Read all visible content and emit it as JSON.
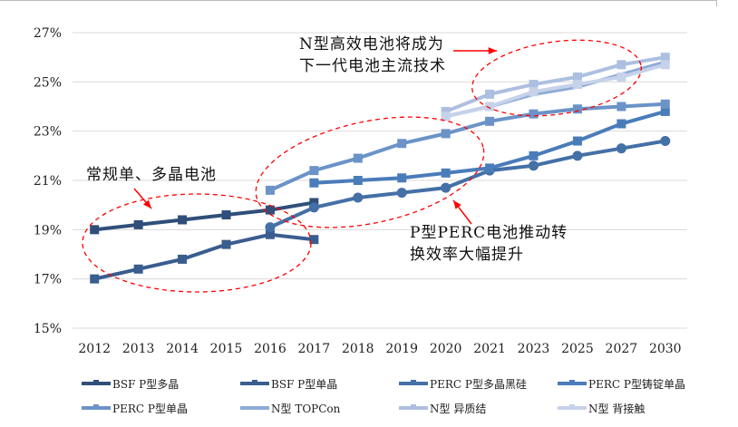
{
  "chart_data": {
    "type": "line",
    "title": "",
    "xlabel": "",
    "ylabel": "",
    "categories": [
      "2012",
      "2013",
      "2014",
      "2015",
      "2016",
      "2017",
      "2018",
      "2019",
      "2020",
      "2021",
      "2023",
      "2025",
      "2027",
      "2030"
    ],
    "ylim": [
      15,
      27
    ],
    "yticks": [
      "15%",
      "17%",
      "19%",
      "21%",
      "23%",
      "25%",
      "27%"
    ],
    "grid": true,
    "legend_position": "bottom",
    "series": [
      {
        "name": "BSF P型多晶",
        "color": "#2f4f7a",
        "marker": "square",
        "values": [
          19.0,
          19.2,
          19.4,
          19.6,
          19.8,
          20.1,
          null,
          null,
          null,
          null,
          null,
          null,
          null,
          null
        ]
      },
      {
        "name": "BSF P型单晶",
        "color": "#3a5d8f",
        "marker": "square",
        "values": [
          17.0,
          17.4,
          17.8,
          18.4,
          18.8,
          18.6,
          null,
          null,
          null,
          null,
          null,
          null,
          null,
          null
        ]
      },
      {
        "name": "PERC P型多晶黑硅",
        "color": "#4470a6",
        "marker": "circle",
        "values": [
          null,
          null,
          null,
          null,
          19.1,
          19.9,
          20.3,
          20.5,
          20.7,
          21.4,
          21.6,
          22.0,
          22.3,
          22.6
        ]
      },
      {
        "name": "PERC P型铸锭单晶",
        "color": "#4a7cba",
        "marker": "square",
        "values": [
          null,
          null,
          null,
          null,
          null,
          20.9,
          21.0,
          21.1,
          21.3,
          21.5,
          22.0,
          22.6,
          23.3,
          23.8
        ]
      },
      {
        "name": "PERC P型单晶",
        "color": "#6b93c8",
        "marker": "square",
        "values": [
          null,
          null,
          null,
          null,
          20.6,
          21.4,
          21.9,
          22.5,
          22.9,
          23.4,
          23.7,
          23.9,
          24.0,
          24.1
        ]
      },
      {
        "name": "N型 TOPCon",
        "color": "#8eaad6",
        "marker": "none",
        "values": [
          null,
          null,
          null,
          null,
          null,
          null,
          null,
          null,
          23.6,
          24.0,
          24.5,
          24.8,
          25.3,
          25.8
        ]
      },
      {
        "name": "N型 异质结",
        "color": "#adbfe0",
        "marker": "square",
        "values": [
          null,
          null,
          null,
          null,
          null,
          null,
          null,
          null,
          23.8,
          24.5,
          24.9,
          25.2,
          25.7,
          26.0
        ]
      },
      {
        "name": "N型 背接触",
        "color": "#c6d2ea",
        "marker": "square",
        "values": [
          null,
          null,
          null,
          null,
          null,
          null,
          null,
          null,
          23.6,
          24.0,
          24.6,
          24.9,
          25.2,
          25.7
        ]
      }
    ],
    "annotations": [
      {
        "text": [
          "常规单、多晶电池"
        ]
      },
      {
        "text": [
          "P型PERC电池推动转",
          "换效率大幅提升"
        ]
      },
      {
        "text": [
          "N型高效电池将成为",
          "下一代电池主流技术"
        ]
      }
    ],
    "annotation_color": "#ff0000"
  }
}
